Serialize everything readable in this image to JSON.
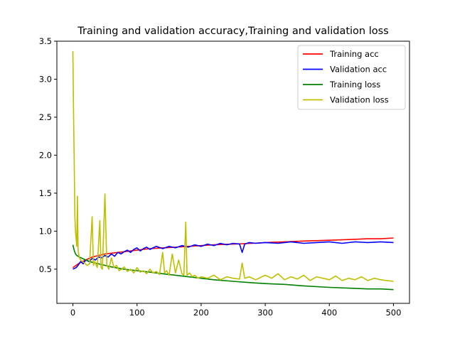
{
  "chart_data": {
    "type": "line",
    "title": "Training and validation accuracy,Training and validation loss",
    "xlabel": "",
    "ylabel": "",
    "xlim": [
      -25,
      525
    ],
    "ylim": [
      0.05,
      3.5
    ],
    "xticks": [
      0,
      100,
      200,
      300,
      400,
      500
    ],
    "xtick_labels": [
      "0",
      "100",
      "200",
      "300",
      "400",
      "500"
    ],
    "yticks": [
      0.5,
      1.0,
      1.5,
      2.0,
      2.5,
      3.0,
      3.5
    ],
    "ytick_labels": [
      "0.5",
      "1.0",
      "1.5",
      "2.0",
      "2.5",
      "3.0",
      "3.5"
    ],
    "grid": false,
    "legend_position": "top-right",
    "series": [
      {
        "name": "Training acc",
        "color": "#ff0000",
        "x": [
          0,
          5,
          10,
          20,
          30,
          40,
          50,
          60,
          70,
          80,
          90,
          100,
          120,
          140,
          160,
          180,
          200,
          220,
          250,
          280,
          300,
          330,
          360,
          400,
          430,
          460,
          480,
          500
        ],
        "y": [
          0.52,
          0.55,
          0.58,
          0.62,
          0.66,
          0.68,
          0.7,
          0.71,
          0.72,
          0.73,
          0.74,
          0.75,
          0.77,
          0.78,
          0.79,
          0.8,
          0.81,
          0.82,
          0.83,
          0.84,
          0.85,
          0.86,
          0.87,
          0.88,
          0.89,
          0.9,
          0.9,
          0.91
        ]
      },
      {
        "name": "Validation acc",
        "color": "#0000ff",
        "x": [
          0,
          5,
          8,
          12,
          16,
          20,
          25,
          30,
          35,
          40,
          45,
          50,
          55,
          60,
          65,
          70,
          75,
          80,
          85,
          90,
          95,
          100,
          105,
          110,
          115,
          120,
          125,
          130,
          140,
          150,
          160,
          170,
          180,
          190,
          200,
          210,
          220,
          230,
          240,
          250,
          260,
          264,
          268,
          275,
          285,
          300,
          320,
          340,
          360,
          380,
          400,
          420,
          440,
          460,
          480,
          500
        ],
        "y": [
          0.5,
          0.52,
          0.55,
          0.6,
          0.57,
          0.62,
          0.6,
          0.64,
          0.62,
          0.66,
          0.65,
          0.68,
          0.66,
          0.7,
          0.67,
          0.72,
          0.7,
          0.73,
          0.75,
          0.72,
          0.76,
          0.78,
          0.74,
          0.77,
          0.79,
          0.76,
          0.78,
          0.8,
          0.77,
          0.8,
          0.78,
          0.81,
          0.79,
          0.82,
          0.8,
          0.83,
          0.81,
          0.84,
          0.82,
          0.84,
          0.83,
          0.72,
          0.83,
          0.85,
          0.84,
          0.85,
          0.84,
          0.86,
          0.84,
          0.85,
          0.86,
          0.84,
          0.86,
          0.85,
          0.86,
          0.85
        ]
      },
      {
        "name": "Training loss",
        "color": "#008000",
        "x": [
          0,
          2,
          4,
          6,
          10,
          15,
          20,
          30,
          40,
          50,
          60,
          80,
          100,
          120,
          140,
          160,
          180,
          200,
          220,
          250,
          280,
          300,
          330,
          360,
          400,
          430,
          460,
          480,
          500
        ],
        "y": [
          0.82,
          0.75,
          0.7,
          0.68,
          0.66,
          0.64,
          0.62,
          0.59,
          0.57,
          0.55,
          0.53,
          0.5,
          0.48,
          0.46,
          0.44,
          0.42,
          0.4,
          0.38,
          0.36,
          0.34,
          0.32,
          0.31,
          0.3,
          0.28,
          0.26,
          0.25,
          0.24,
          0.24,
          0.23
        ]
      },
      {
        "name": "Validation loss",
        "color": "#bfbf00",
        "x": [
          0,
          1,
          2,
          3,
          4,
          5,
          6,
          7,
          8,
          9,
          10,
          12,
          15,
          18,
          22,
          26,
          30,
          32,
          34,
          38,
          42,
          44,
          46,
          50,
          53,
          56,
          60,
          64,
          68,
          72,
          76,
          80,
          85,
          90,
          95,
          100,
          105,
          110,
          115,
          120,
          125,
          130,
          135,
          140,
          143,
          146,
          150,
          155,
          160,
          165,
          170,
          173,
          176,
          178,
          182,
          186,
          190,
          195,
          200,
          210,
          220,
          230,
          240,
          250,
          260,
          264,
          268,
          275,
          285,
          300,
          310,
          320,
          330,
          340,
          350,
          360,
          370,
          380,
          390,
          400,
          410,
          420,
          430,
          440,
          450,
          460,
          470,
          480,
          490,
          500
        ],
        "y": [
          3.37,
          2.6,
          1.97,
          1.2,
          1.0,
          0.9,
          0.8,
          1.46,
          0.75,
          0.7,
          0.65,
          0.62,
          0.6,
          0.58,
          0.55,
          0.57,
          1.19,
          0.55,
          0.6,
          0.52,
          1.14,
          0.52,
          0.5,
          1.49,
          0.55,
          0.5,
          0.65,
          0.52,
          0.55,
          0.48,
          0.5,
          0.53,
          0.47,
          0.5,
          0.45,
          0.52,
          0.46,
          0.48,
          0.44,
          0.5,
          0.45,
          0.47,
          0.43,
          0.72,
          0.45,
          0.48,
          0.42,
          0.7,
          0.45,
          0.62,
          0.44,
          0.42,
          1.12,
          0.42,
          0.45,
          0.4,
          0.42,
          0.38,
          0.4,
          0.38,
          0.42,
          0.36,
          0.4,
          0.38,
          0.37,
          0.58,
          0.38,
          0.4,
          0.36,
          0.42,
          0.38,
          0.44,
          0.36,
          0.4,
          0.37,
          0.42,
          0.35,
          0.4,
          0.38,
          0.36,
          0.41,
          0.35,
          0.38,
          0.36,
          0.4,
          0.35,
          0.38,
          0.36,
          0.35,
          0.34
        ]
      }
    ]
  }
}
